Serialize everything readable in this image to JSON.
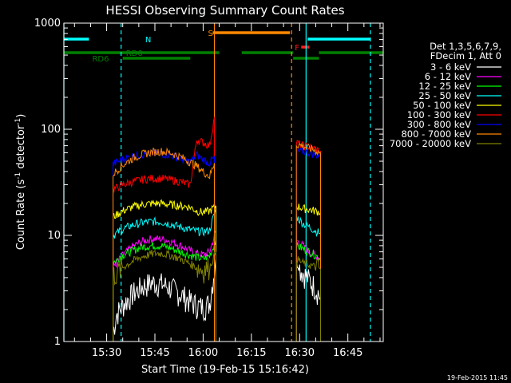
{
  "chart_data": {
    "type": "line",
    "title": "HESSI Observing Summary Count Rates",
    "xlabel": "Start Time (19-Feb-15 15:16:42)",
    "ylabel_main": "Count Rate (s",
    "ylabel_sup1": "-1",
    "ylabel_mid": " detector",
    "ylabel_sup2": "-1",
    "ylabel_end": ")",
    "x_unit": "minutes",
    "xlim": [
      "15:16:42",
      "16:56:00"
    ],
    "x_ticks": [
      "15:30",
      "15:45",
      "16:00",
      "16:15",
      "16:30",
      "16:45"
    ],
    "y_scale": "log",
    "ylim": [
      1,
      1000
    ],
    "y_ticks": [
      "1",
      "10",
      "100",
      "1000"
    ],
    "legend_header": [
      "Det 1,3,5,6,7,9,",
      "FDecim 1, Att 0"
    ],
    "timestamp": "19-Feb-2015 11:45",
    "colors": {
      "attenuator": "#ff8800",
      "night": "#00ffff",
      "saa": "#ff2020",
      "decim": "#008000"
    },
    "flags": {
      "N": {
        "label": "N",
        "color": "#00ffff",
        "segments": [
          [
            "15:16:42",
            "15:24:30"
          ],
          [
            "16:32:30",
            "16:52:00"
          ]
        ]
      },
      "S": {
        "label": "S",
        "color": "#ff8800",
        "segments": [
          [
            "16:03:00",
            "16:27:00"
          ]
        ]
      },
      "F": {
        "label": "F",
        "color": "#ff2020",
        "segments": [
          [
            "16:30:30",
            "16:33:00"
          ]
        ]
      },
      "RD0": {
        "label": "RD0",
        "color": "#008000",
        "segments": [
          [
            "15:16:42",
            "16:05:00"
          ],
          [
            "16:12:00",
            "16:28:00"
          ],
          [
            "16:36:00",
            "16:56:00"
          ]
        ]
      },
      "RD6": {
        "label": "RD6",
        "color": "#008000",
        "segments": [
          [
            "15:35:00",
            "15:56:00"
          ],
          [
            "16:28:00",
            "16:36:00"
          ]
        ]
      }
    },
    "vlines": [
      {
        "time": "15:16:42",
        "color": "#00ffff",
        "style": "solid"
      },
      {
        "time": "15:34:30",
        "color": "#00ffff",
        "style": "dashed"
      },
      {
        "time": "16:03:30",
        "color": "#ff8800",
        "style": "solid"
      },
      {
        "time": "16:27:30",
        "color": "#ff8800",
        "style": "dashed"
      },
      {
        "time": "16:32:00",
        "color": "#00ffff",
        "style": "solid"
      },
      {
        "time": "16:52:00",
        "color": "#00ffff",
        "style": "dashed"
      }
    ],
    "series": [
      {
        "name": "3 - 6 keV",
        "color": "#ffffff",
        "data": [
          [
            "15:32:00",
            1.2
          ],
          [
            "15:33:00",
            1.8
          ],
          [
            "15:35:00",
            2.2
          ],
          [
            "15:38:00",
            2.8
          ],
          [
            "15:41:00",
            3.3
          ],
          [
            "15:44:00",
            3.6
          ],
          [
            "15:47:00",
            3.5
          ],
          [
            "15:50:00",
            3.2
          ],
          [
            "15:53:00",
            2.8
          ],
          [
            "15:56:00",
            2.4
          ],
          [
            "15:58:00",
            2.2
          ],
          [
            "16:00:00",
            2.1
          ],
          [
            "16:02:00",
            2.3
          ],
          [
            "16:04:00",
            6.0
          ],
          [
            "16:29:00",
            5.5
          ],
          [
            "16:31:00",
            4.5
          ],
          [
            "16:33:00",
            3.8
          ],
          [
            "16:35:00",
            3.2
          ],
          [
            "16:36:30",
            2.6
          ]
        ]
      },
      {
        "name": "6 - 12 keV",
        "color": "#ff00ff",
        "data": [
          [
            "15:32:00",
            5.0
          ],
          [
            "15:35:00",
            6.5
          ],
          [
            "15:38:00",
            7.8
          ],
          [
            "15:41:00",
            8.8
          ],
          [
            "15:44:00",
            9.3
          ],
          [
            "15:47:00",
            9.3
          ],
          [
            "15:50:00",
            8.8
          ],
          [
            "15:53:00",
            8.0
          ],
          [
            "15:56:00",
            7.2
          ],
          [
            "15:58:00",
            6.8
          ],
          [
            "16:00:00",
            6.6
          ],
          [
            "16:02:00",
            7.0
          ],
          [
            "16:04:00",
            11.0
          ],
          [
            "16:29:00",
            9.0
          ],
          [
            "16:31:00",
            8.0
          ],
          [
            "16:33:00",
            7.0
          ],
          [
            "16:35:00",
            6.5
          ],
          [
            "16:36:30",
            6.0
          ]
        ]
      },
      {
        "name": "12 - 25 keV",
        "color": "#00ff00",
        "data": [
          [
            "15:32:00",
            5.5
          ],
          [
            "15:35:00",
            6.5
          ],
          [
            "15:38:00",
            7.2
          ],
          [
            "15:41:00",
            7.8
          ],
          [
            "15:44:00",
            8.0
          ],
          [
            "15:47:00",
            8.0
          ],
          [
            "15:50:00",
            7.6
          ],
          [
            "15:53:00",
            7.0
          ],
          [
            "15:56:00",
            6.5
          ],
          [
            "15:58:00",
            6.2
          ],
          [
            "16:00:00",
            6.0
          ],
          [
            "16:02:00",
            6.4
          ],
          [
            "16:04:00",
            9.0
          ],
          [
            "16:29:00",
            8.0
          ],
          [
            "16:31:00",
            7.5
          ],
          [
            "16:33:00",
            7.0
          ],
          [
            "16:35:00",
            6.5
          ],
          [
            "16:36:30",
            6.0
          ]
        ]
      },
      {
        "name": "25 - 50 keV",
        "color": "#00ffff",
        "data": [
          [
            "15:32:00",
            10.0
          ],
          [
            "15:35:00",
            11.5
          ],
          [
            "15:38:00",
            12.5
          ],
          [
            "15:41:00",
            13.2
          ],
          [
            "15:44:00",
            13.5
          ],
          [
            "15:47:00",
            13.4
          ],
          [
            "15:50:00",
            12.8
          ],
          [
            "15:53:00",
            12.0
          ],
          [
            "15:56:00",
            11.3
          ],
          [
            "15:58:00",
            11.0
          ],
          [
            "16:00:00",
            10.8
          ],
          [
            "16:02:00",
            11.2
          ],
          [
            "16:04:00",
            18.0
          ],
          [
            "16:29:00",
            15.0
          ],
          [
            "16:31:00",
            13.0
          ],
          [
            "16:33:00",
            12.0
          ],
          [
            "16:35:00",
            11.0
          ],
          [
            "16:36:30",
            10.5
          ]
        ]
      },
      {
        "name": "50 - 100 keV",
        "color": "#ffff00",
        "data": [
          [
            "15:32:00",
            15.0
          ],
          [
            "15:35:00",
            17.0
          ],
          [
            "15:38:00",
            18.5
          ],
          [
            "15:41:00",
            19.5
          ],
          [
            "15:44:00",
            20.0
          ],
          [
            "15:47:00",
            20.0
          ],
          [
            "15:50:00",
            19.5
          ],
          [
            "15:53:00",
            19.0
          ],
          [
            "15:56:00",
            18.5
          ],
          [
            "15:58:00",
            17.0
          ],
          [
            "16:00:00",
            16.5
          ],
          [
            "16:02:00",
            17.0
          ],
          [
            "16:04:00",
            19.0
          ],
          [
            "16:29:00",
            19.0
          ],
          [
            "16:31:00",
            18.0
          ],
          [
            "16:33:00",
            17.5
          ],
          [
            "16:35:00",
            17.0
          ],
          [
            "16:36:30",
            16.5
          ]
        ]
      },
      {
        "name": "100 - 300 keV",
        "color": "#ff0000",
        "data": [
          [
            "15:32:00",
            27.0
          ],
          [
            "15:35:00",
            30.0
          ],
          [
            "15:38:00",
            32.0
          ],
          [
            "15:41:00",
            33.5
          ],
          [
            "15:44:00",
            34.5
          ],
          [
            "15:47:00",
            34.5
          ],
          [
            "15:50:00",
            33.5
          ],
          [
            "15:53:00",
            32.0
          ],
          [
            "15:56:00",
            30.0
          ],
          [
            "15:58:00",
            80.0
          ],
          [
            "16:00:00",
            75.0
          ],
          [
            "16:02:00",
            70.0
          ],
          [
            "16:03:30",
            130.0
          ],
          [
            "16:29:00",
            75.0
          ],
          [
            "16:31:00",
            70.0
          ],
          [
            "16:33:00",
            68.0
          ],
          [
            "16:35:00",
            65.0
          ],
          [
            "16:36:30",
            62.0
          ]
        ]
      },
      {
        "name": "300 - 800 keV",
        "color": "#0000ff",
        "data": [
          [
            "15:32:00",
            47.0
          ],
          [
            "15:35:00",
            52.0
          ],
          [
            "15:38:00",
            56.0
          ],
          [
            "15:41:00",
            58.0
          ],
          [
            "15:44:00",
            59.0
          ],
          [
            "15:47:00",
            59.0
          ],
          [
            "15:50:00",
            57.0
          ],
          [
            "15:53:00",
            53.0
          ],
          [
            "15:56:00",
            49.0
          ],
          [
            "15:58:00",
            58.0
          ],
          [
            "16:00:00",
            52.0
          ],
          [
            "16:02:00",
            48.0
          ],
          [
            "16:03:30",
            55.0
          ],
          [
            "16:29:00",
            60.0
          ],
          [
            "16:31:00",
            62.0
          ],
          [
            "16:33:00",
            60.0
          ],
          [
            "16:35:00",
            58.0
          ],
          [
            "16:36:30",
            55.0
          ]
        ]
      },
      {
        "name": "800 - 7000 keV",
        "color": "#ff8800",
        "data": [
          [
            "15:32:00",
            38.0
          ],
          [
            "15:35:00",
            46.0
          ],
          [
            "15:38:00",
            53.0
          ],
          [
            "15:41:00",
            58.0
          ],
          [
            "15:44:00",
            61.0
          ],
          [
            "15:47:00",
            62.0
          ],
          [
            "15:50:00",
            60.0
          ],
          [
            "15:53:00",
            55.0
          ],
          [
            "15:56:00",
            49.0
          ],
          [
            "15:58:00",
            45.0
          ],
          [
            "16:00:00",
            40.0
          ],
          [
            "16:02:00",
            36.0
          ],
          [
            "16:03:30",
            48.0
          ],
          [
            "16:29:00",
            72.0
          ],
          [
            "16:31:00",
            70.0
          ],
          [
            "16:33:00",
            66.0
          ],
          [
            "16:35:00",
            63.0
          ],
          [
            "16:36:30",
            60.0
          ]
        ]
      },
      {
        "name": "7000 - 20000 keV",
        "color": "#808000",
        "data": [
          [
            "15:32:00",
            4.2
          ],
          [
            "15:35:00",
            5.0
          ],
          [
            "15:38:00",
            5.7
          ],
          [
            "15:41:00",
            6.3
          ],
          [
            "15:44:00",
            6.7
          ],
          [
            "15:47:00",
            6.8
          ],
          [
            "15:50:00",
            6.5
          ],
          [
            "15:53:00",
            6.0
          ],
          [
            "15:56:00",
            5.4
          ],
          [
            "15:58:00",
            5.0
          ],
          [
            "16:00:00",
            4.8
          ],
          [
            "16:02:00",
            5.0
          ],
          [
            "16:04:00",
            7.0
          ],
          [
            "16:29:00",
            6.0
          ],
          [
            "16:31:00",
            5.5
          ],
          [
            "16:33:00",
            5.3
          ],
          [
            "16:35:00",
            5.0
          ],
          [
            "16:36:30",
            4.8
          ]
        ]
      }
    ]
  }
}
